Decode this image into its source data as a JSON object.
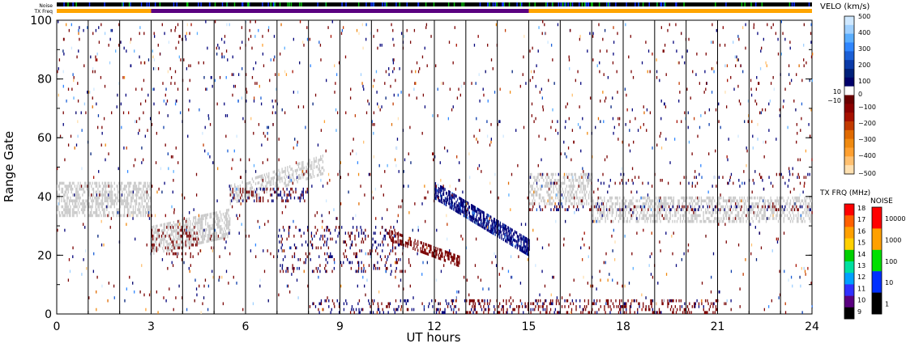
{
  "chart_data": {
    "type": "heatmap",
    "title": "",
    "xlabel": "UT hours",
    "ylabel": "Range Gate",
    "xlim": [
      0,
      24
    ],
    "ylim": [
      0,
      100
    ],
    "x_ticks": [
      "0",
      "3",
      "6",
      "9",
      "12",
      "15",
      "18",
      "21",
      "24"
    ],
    "y_ticks": [
      "0",
      "20",
      "40",
      "60",
      "80",
      "100"
    ],
    "minor_x_step": 1,
    "grid_vertical_hours": true,
    "colors": {
      "ground_scatter": "#c8c8c8",
      "dark_red": "#7a0000",
      "navy": "#00007a",
      "tx_freq_orange": "#ffa500",
      "tx_freq_purple": "#5a0080"
    },
    "top_strips": {
      "noise_label": "Noise",
      "tx_freq_label": "TX Freq",
      "tx_freq_segments": [
        {
          "start": 0,
          "end": 3,
          "color": "#ffa500"
        },
        {
          "start": 3,
          "end": 15,
          "color": "#5a0080"
        },
        {
          "start": 15,
          "end": 24,
          "color": "#ffa500"
        }
      ]
    },
    "bands": [
      {
        "name": "ground-scatter-core",
        "x": [
          0,
          3
        ],
        "gate": [
          33,
          46
        ],
        "color": "gray"
      },
      {
        "name": "ground-scatter-rise",
        "x": [
          3,
          5.5
        ],
        "gate": [
          20,
          34
        ],
        "color": "gray"
      },
      {
        "name": "ground-scatter-upper",
        "x": [
          5.5,
          8.5
        ],
        "gate": [
          38,
          56
        ],
        "color": "gray"
      },
      {
        "name": "ground-scatter-late",
        "x": [
          15,
          24
        ],
        "gate": [
          30,
          48
        ],
        "color": "gray"
      },
      {
        "name": "descending-arc",
        "x": [
          12,
          15
        ],
        "gate": [
          20,
          44
        ],
        "color": "navy"
      },
      {
        "name": "low-band-midday",
        "x": [
          7,
          11
        ],
        "gate": [
          14,
          30
        ],
        "color": "mixed"
      },
      {
        "name": "near-range",
        "x": [
          8,
          21
        ],
        "gate": [
          0,
          6
        ],
        "color": "mixed"
      }
    ],
    "velocity_legend": {
      "title": "VELO (km/s)",
      "ticks": [
        "500",
        "400",
        "300",
        "200",
        "100",
        "0",
        "10",
        "−10",
        "−100",
        "−200",
        "−300",
        "−400",
        "−500"
      ],
      "colors_top_to_bottom": [
        "#cfe8ff",
        "#9fd0ff",
        "#5aaeff",
        "#2f86ff",
        "#1a5fd6",
        "#0a3aa8",
        "#00207a",
        "#00006a",
        "#ffffff",
        "#6a0000",
        "#8a0000",
        "#a61000",
        "#c23a00",
        "#e06a00",
        "#f08a10",
        "#ffa030",
        "#ffc070",
        "#ffe0b0"
      ]
    },
    "txfreq_legend": {
      "title": "TX FRQ (MHz)",
      "ticks": [
        "18",
        "17",
        "16",
        "15",
        "14",
        "13",
        "12",
        "11",
        "10",
        "9"
      ],
      "colors_top_to_bottom": [
        "#ff0000",
        "#ff6000",
        "#ffa000",
        "#ffd000",
        "#00d000",
        "#00e0a0",
        "#00a0ff",
        "#3030ff",
        "#5a0080",
        "#000000"
      ]
    },
    "noise_legend": {
      "title": "NOISE",
      "ticks": [
        "10000",
        "1000",
        "100",
        "10",
        "1"
      ],
      "colors_top_to_bottom": [
        "#ff0000",
        "#ffa000",
        "#00e000",
        "#0030ff",
        "#000000"
      ]
    }
  }
}
